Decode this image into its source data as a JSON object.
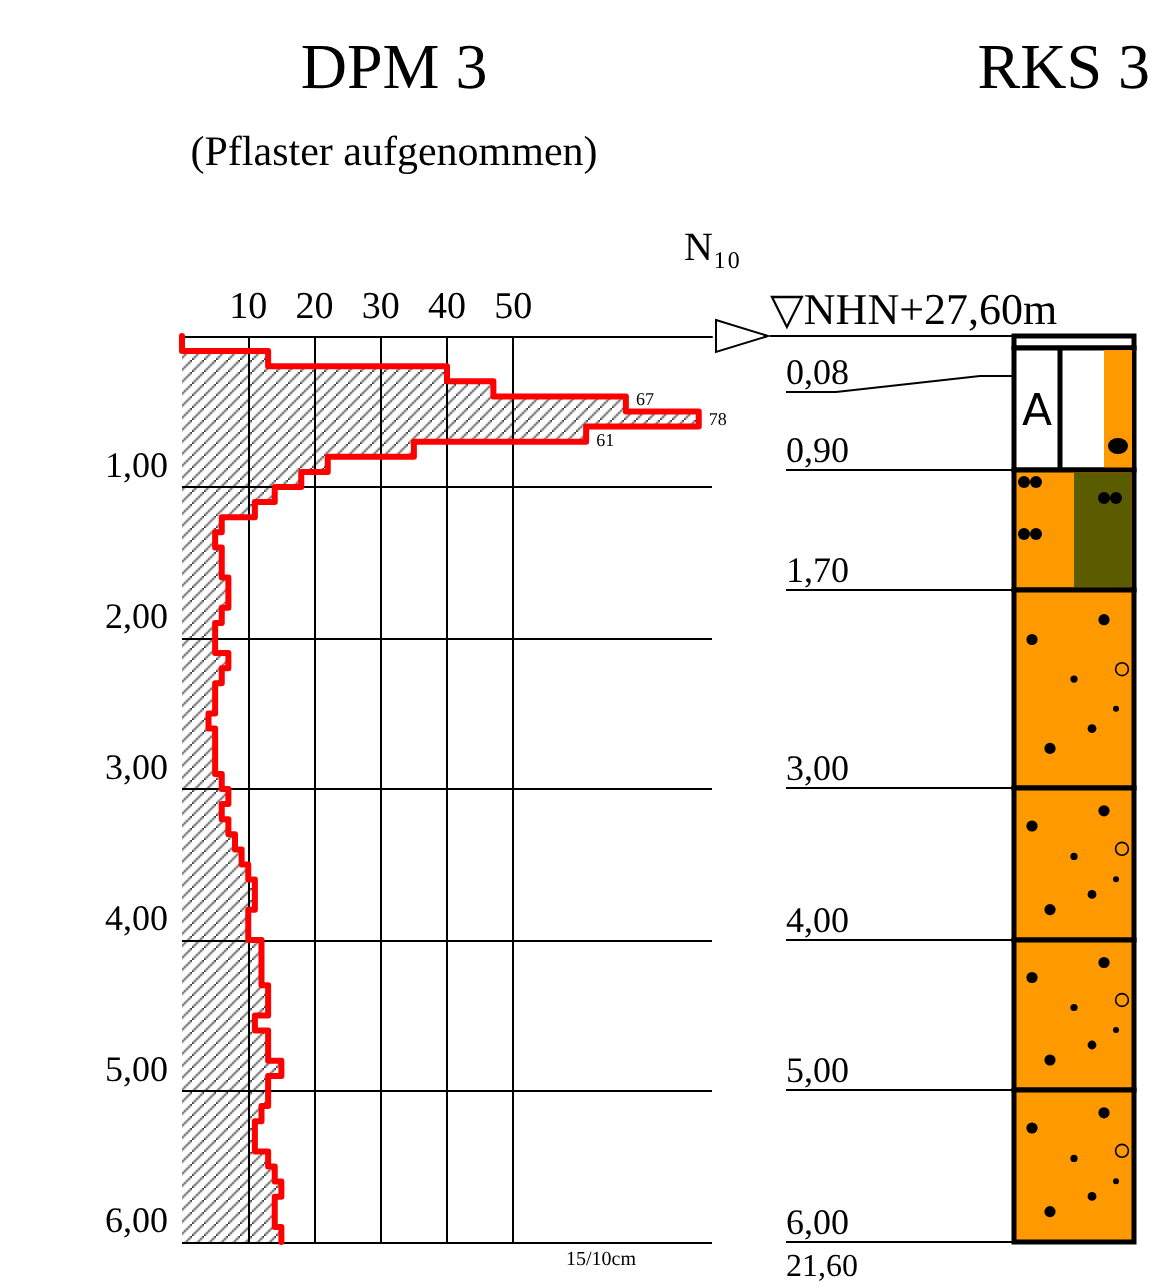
{
  "chart_data": [
    {
      "type": "histogram",
      "title": "DPM 3",
      "subtitle": "(Pflaster aufgenommen)",
      "xlabel": "N₁₀",
      "orientation": "horizontal",
      "bins": [
        0,
        0.1,
        0.2,
        0.3,
        0.4,
        0.5,
        0.6,
        0.7,
        0.8,
        0.9,
        1.0,
        1.1,
        1.2,
        1.3,
        1.4,
        1.5,
        1.6,
        1.7,
        1.8,
        1.9,
        2.0,
        2.1,
        2.2,
        2.3,
        2.4,
        2.5,
        2.6,
        2.7,
        2.8,
        2.9,
        3.0,
        3.1,
        3.2,
        3.3,
        3.4,
        3.5,
        3.6,
        3.7,
        3.8,
        3.9,
        4.0,
        4.1,
        4.2,
        4.3,
        4.4,
        4.5,
        4.6,
        4.7,
        4.8,
        4.9,
        5.0,
        5.1,
        5.2,
        5.3,
        5.4,
        5.5,
        5.6,
        5.7,
        5.8,
        5.9,
        6.0
      ],
      "series": [
        {
          "values": [
            0,
            13,
            40,
            47,
            67,
            78,
            61,
            35,
            22,
            18,
            14,
            11,
            6,
            5,
            6,
            6,
            7,
            7,
            6,
            5,
            5,
            7,
            6,
            5,
            5,
            4,
            5,
            5,
            5,
            6,
            7,
            6,
            7,
            8,
            9,
            10,
            11,
            11,
            10,
            10,
            12,
            12,
            12,
            13,
            13,
            11,
            13,
            13,
            15,
            13,
            13,
            12,
            11,
            11,
            13,
            14,
            15,
            14,
            14,
            15
          ],
          "value_labels": [
            null,
            null,
            null,
            null,
            "67",
            "78",
            "61",
            null,
            null,
            null,
            null,
            null,
            null,
            null,
            null,
            null,
            null,
            null,
            null,
            null,
            null,
            null,
            null,
            null,
            null,
            null,
            null,
            null,
            null,
            null,
            null,
            null,
            null,
            null,
            null,
            null,
            null,
            null,
            null,
            null,
            null,
            null,
            null,
            null,
            null,
            null,
            null,
            null,
            null,
            null,
            null,
            null,
            null,
            null,
            null,
            null,
            null,
            null,
            null,
            null
          ]
        },
        {
          "type": "line",
          "color": "#ff0000",
          "x": [
            0,
            0.1,
            0.1,
            0.2,
            0.2,
            0.3,
            0.3,
            0.4,
            0.4,
            0.5,
            0.5,
            0.6,
            0.6,
            0.7,
            0.7,
            0.8,
            0.8,
            0.9,
            0.9,
            1.0,
            1.0,
            1.1,
            1.1,
            1.2,
            1.2,
            1.3,
            1.3,
            1.4,
            1.4,
            1.5,
            1.5,
            1.6,
            1.6,
            1.7,
            1.7,
            1.8,
            1.8,
            1.9,
            1.9,
            2.0,
            2.0,
            2.1,
            2.1,
            2.2,
            2.2,
            2.3,
            2.3,
            2.4,
            2.4,
            2.5,
            2.5,
            2.6,
            2.6,
            2.7,
            2.7,
            2.8,
            2.8,
            2.9,
            2.9,
            3.0,
            3.0,
            3.1,
            3.1,
            3.2,
            3.2,
            3.3,
            3.3,
            3.4,
            3.4,
            3.5,
            3.5,
            3.6,
            3.6,
            3.7,
            3.7,
            3.8,
            3.8,
            3.9,
            3.9,
            4.0,
            4.0,
            4.1,
            4.1,
            4.2,
            4.2,
            4.3,
            4.3,
            4.4,
            4.4,
            4.5,
            4.5,
            4.6,
            4.6,
            4.7,
            4.7,
            4.8,
            4.8,
            4.9,
            4.9,
            5.0,
            5.0,
            5.1,
            5.1,
            5.2,
            5.2,
            5.3,
            5.3,
            5.4,
            5.4,
            5.5,
            5.5,
            5.6,
            5.6,
            5.7,
            5.7,
            5.8,
            5.8,
            5.9,
            5.9,
            6.0
          ],
          "values": [
            0,
            0,
            13,
            13,
            40,
            40,
            47,
            47,
            67,
            67,
            78,
            78,
            61,
            61,
            35,
            35,
            22,
            22,
            18,
            18,
            14,
            14,
            11,
            11,
            6,
            6,
            5,
            5,
            6,
            6,
            6,
            6,
            7,
            7,
            7,
            7,
            6,
            6,
            5,
            5,
            5,
            5,
            7,
            7,
            6,
            6,
            5,
            5,
            5,
            5,
            4,
            4,
            5,
            5,
            5,
            5,
            5,
            5,
            6,
            6,
            7,
            7,
            6,
            6,
            7,
            7,
            8,
            8,
            9,
            9,
            10,
            10,
            11,
            11,
            11,
            11,
            10,
            10,
            10,
            10,
            12,
            12,
            12,
            12,
            12,
            12,
            13,
            13,
            13,
            13,
            11,
            11,
            13,
            13,
            13,
            13,
            15,
            15,
            13,
            13,
            13,
            13,
            12,
            12,
            11,
            11,
            11,
            11,
            13,
            13,
            14,
            14,
            15,
            15,
            14,
            14,
            14,
            14,
            15,
            15
          ]
        }
      ],
      "xlim": [
        0,
        80
      ],
      "xticks": [
        10,
        20,
        30,
        40,
        50
      ],
      "ylim": [
        6,
        0
      ],
      "yticks": [
        {
          "value": 0,
          "label": null
        },
        {
          "value": 1,
          "label": "1,00"
        },
        {
          "value": 2,
          "label": "2,00"
        },
        {
          "value": 3,
          "label": "3,00"
        },
        {
          "value": 4,
          "label": "4,00"
        },
        {
          "value": 5,
          "label": "5,00"
        },
        {
          "value": 6,
          "label": "6,00"
        }
      ],
      "grid": true,
      "annotations": [
        "15/10cm"
      ]
    },
    {
      "type": "other",
      "title": "RKS 3",
      "annotations": [
        "▽NHN+27,60m",
        "0,08",
        "0,90",
        "1,70",
        "3,00",
        "4,00",
        "5,00",
        "6,00",
        "21,60",
        "A"
      ]
    }
  ]
}
